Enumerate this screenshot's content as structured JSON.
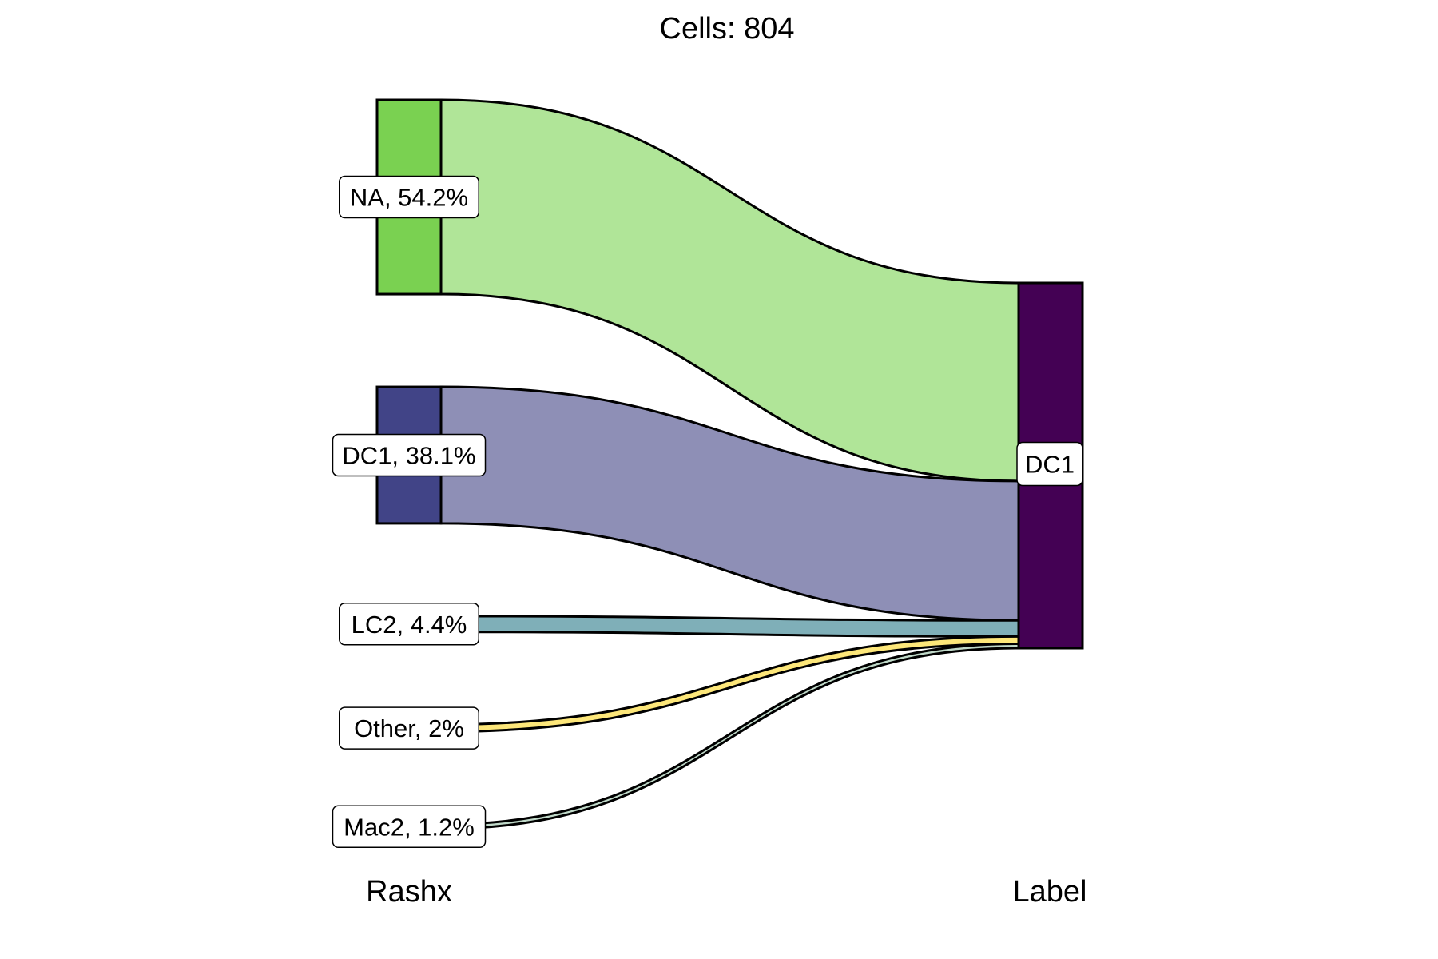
{
  "chart_data": {
    "type": "sankey",
    "title": "Cells:  804",
    "axes": [
      "Rashx",
      "Label"
    ],
    "left_nodes": [
      {
        "name": "NA",
        "label": "NA, 54.2%",
        "percent": 54.2,
        "color": "#7AD151",
        "flow_color": "#B0E598"
      },
      {
        "name": "DC1",
        "label": "DC1, 38.1%",
        "percent": 38.1,
        "color": "#414487",
        "flow_color": "#8E8FB6"
      },
      {
        "name": "LC2",
        "label": "LC2, 4.4%",
        "percent": 4.4,
        "color": "#7FAFB8",
        "flow_color": "#7FAFB8"
      },
      {
        "name": "Other",
        "label": "Other, 2%",
        "percent": 2.0,
        "color": "#FDE77A",
        "flow_color": "#FDE77A"
      },
      {
        "name": "Mac2",
        "label": "Mac2, 1.2%",
        "percent": 1.2,
        "color": "#BFD8C8",
        "flow_color": "#BFD8C8"
      }
    ],
    "right_nodes": [
      {
        "name": "DC1",
        "label": "DC1",
        "percent": 100,
        "color": "#440154"
      }
    ]
  }
}
